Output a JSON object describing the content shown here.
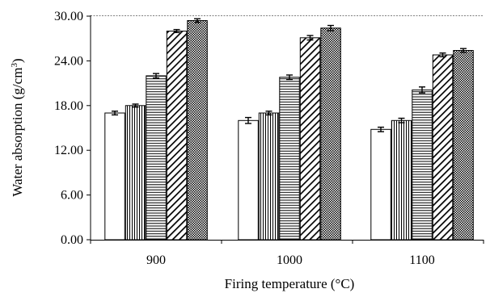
{
  "chart_data": {
    "type": "bar",
    "categories": [
      "900",
      "1000",
      "1100"
    ],
    "series": [
      {
        "pattern": "blank",
        "values": [
          17.0,
          16.0,
          14.8
        ],
        "errors": [
          0.25,
          0.4,
          0.3
        ]
      },
      {
        "pattern": "vertical-lines",
        "values": [
          18.0,
          17.0,
          16.0
        ],
        "errors": [
          0.2,
          0.25,
          0.3
        ]
      },
      {
        "pattern": "horizontal-lines",
        "values": [
          22.0,
          21.8,
          20.1
        ],
        "errors": [
          0.3,
          0.3,
          0.4
        ]
      },
      {
        "pattern": "diagonal-lines",
        "values": [
          28.0,
          27.1,
          24.8
        ],
        "errors": [
          0.2,
          0.3,
          0.25
        ]
      },
      {
        "pattern": "checkered",
        "values": [
          29.4,
          28.4,
          25.4
        ],
        "errors": [
          0.25,
          0.35,
          0.25
        ]
      }
    ],
    "xlabel": "Firing temperature (°C)",
    "ylabel_main": "Water absorption (g/cm",
    "ylabel_sup": "3",
    "ylabel_close": ")",
    "ylim": [
      0,
      30
    ],
    "yticks": [
      "0.00",
      "6.00",
      "12.00",
      "18.00",
      "24.00",
      "30.00"
    ],
    "grid": false,
    "colors": {
      "bar_fill": "#ffffff",
      "bar_stroke": "#000000",
      "pattern": "#000000"
    }
  }
}
